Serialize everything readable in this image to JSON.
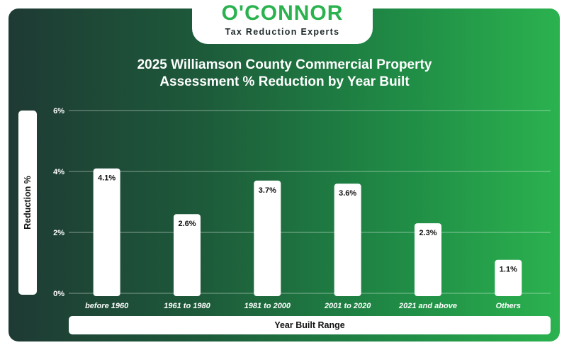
{
  "brand": {
    "name": "O'CONNOR",
    "tagline": "Tax Reduction Experts"
  },
  "chart_data": {
    "type": "bar",
    "title_line1": "2025 Williamson County Commercial Property",
    "title_line2": "Assessment % Reduction by Year Built",
    "xlabel": "Year Built Range",
    "ylabel": "Reduction %",
    "categories": [
      "before 1960",
      "1961 to 1980",
      "1981 to 2000",
      "2001 to 2020",
      "2021 and above",
      "Others"
    ],
    "values": [
      4.1,
      2.6,
      3.7,
      3.6,
      2.3,
      1.1
    ],
    "data_labels": [
      "4.1%",
      "2.6%",
      "3.7%",
      "3.6%",
      "2.3%",
      "1.1%"
    ],
    "ylim": [
      0,
      6
    ],
    "yticks": [
      0,
      2,
      4,
      6
    ],
    "ytick_labels": [
      "0%",
      "2%",
      "4%",
      "6%"
    ],
    "grid": true,
    "legend": "none",
    "colors": {
      "bar": "#ffffff",
      "background_start": "#1e3a34",
      "background_end": "#2bb24f",
      "brand_green": "#2bb24f"
    }
  }
}
